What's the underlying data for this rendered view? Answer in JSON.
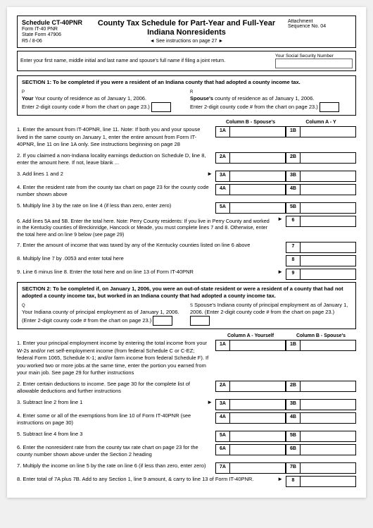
{
  "header": {
    "schedule": "Schedule CT-40PNR",
    "form": "Form IT-40 PNR",
    "stateForm": "State Form 47906",
    "rev": "R5 / 8-06",
    "title1": "County Tax Schedule for Part-Year and Full-Year",
    "title2": "Indiana Nonresidents",
    "seeInstr": "◄ See instructions on page 27 ►",
    "attachment": "Attachment",
    "seqNo": "Sequence No. 04"
  },
  "nameLine": "Enter your first name, middle initial and last name and spouse's full name if filing a joint return.",
  "ssnLabel": "Your Social Security Number",
  "section1": {
    "title": "SECTION 1: To be completed if you were a resident of an Indiana county that had adopted a county income tax.",
    "yourCounty": "Your county of residence as of January 1, 2006.",
    "spouseCounty": "Spouse's county of residence as of January 1, 2006.",
    "enter2digit": "Enter 2-digit county code # from the chart on page 23.)"
  },
  "colHdrA": "Column B - Spouse's",
  "colHdrB": "Column A - Y",
  "lines1": {
    "l1": "1. Enter the amount from IT-40PNR, line 11. Note: If both you and your spouse lived in the same county on January 1, enter the entire amount from Form IT-40PNR, line 11 on line 1A only. See instructions beginning on page 28",
    "l2": "2. If you claimed a non-Indiana locality earnings deduction on Schedule D, line 8, enter the amount here. If not, leave blank ...",
    "l3": "3. Add lines 1 and 2",
    "l4": "4. Enter the resident rate from the county tax chart on page 23 for the county code number shown above",
    "l5": "5. Multiply line 3 by the rate on line 4 (if less than zero, enter zero)",
    "l6note": "6. Add lines 5A and 5B. Enter the total here. Note: Perry County residents: If you live in Perry County and worked in the Kentucky counties of Breckinridge, Hancock or Meade, you must complete lines 7 and 8. Otherwise, enter the total here and on line 9 below (see page 29)",
    "l7": "7. Enter the amount of income that was taxed by any of the Kentucky counties listed on line 6 above",
    "l8": "8. Multiply line 7 by .0053 and enter total here",
    "l9": "9. Line 6 minus line 8. Enter the total here and on line 13 of Form IT-40PNR"
  },
  "section2": {
    "title": "SECTION 2: To be completed if, on January 1, 2006, you were an out-of-state resident or were a resident of a county that had not adopted a county income tax, but worked in an Indiana county that had adopted a county income tax.",
    "yourEmp": "Your Indiana county of principal employment as of January 1, 2006. (Enter 2-digit county code # from the chart on page 23.)",
    "spouseEmp": "Spouse's Indiana county of principal employment as of January 1, 2006. (Enter 2-digit county code # from the chart on page 23.)"
  },
  "colHdr2A": "Column A - Yourself",
  "colHdr2B": "Column B - Spouse's",
  "lines2": {
    "l1": "1. Enter your principal employment income by entering the total income from your W-2s and/or net self-employment income (from federal Schedule C or C-EZ; federal Form 1065, Schedule K-1; and/or farm income from federal Schedule F). If you worked two or more jobs at the same time, enter the portion you earned from your main job. See page 29 for further instructions",
    "l2": "2. Enter certain deductions to income. See page 30 for the complete list of allowable deductions and further instructions",
    "l3": "3. Subtract line 2 from line 1",
    "l4": "4. Enter some or all of the exemptions from line 10 of Form IT-40PNR (see instructions on page 30)",
    "l5": "5. Subtract line 4 from line 3",
    "l6": "6. Enter the nonresident rate from the county tax rate chart on page 23 for the county number shown above under the Section 2 heading",
    "l7": "7. Multiply the income on line 5 by the rate on line 6 (if less than zero, enter zero)",
    "l8": "8. Enter total of 7A plus 7B. Add to any Section 1, line 9 amount, & carry to line 13 of Form IT-40PNR."
  },
  "cellLabels": {
    "s1": [
      "1A",
      "1B",
      "2A",
      "2B",
      "3A",
      "3B",
      "4A",
      "4B",
      "5A",
      "5B",
      "6",
      "7",
      "8",
      "9"
    ],
    "s2": [
      "1A",
      "1B",
      "2A",
      "2B",
      "3A",
      "3B",
      "4A",
      "4B",
      "5A",
      "5B",
      "6A",
      "6B",
      "7A",
      "7B",
      "8"
    ]
  }
}
